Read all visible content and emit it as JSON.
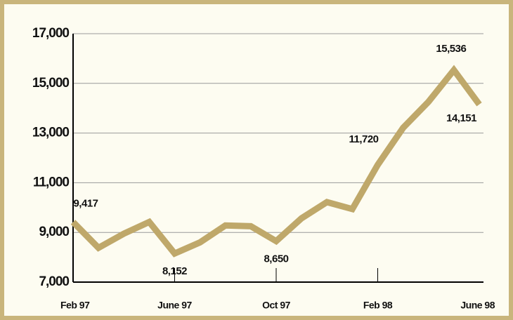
{
  "chart_data": {
    "type": "line",
    "categories": [
      "Feb 97",
      null,
      null,
      null,
      "June 97",
      null,
      null,
      null,
      "Oct 97",
      null,
      null,
      null,
      "Feb 98",
      null,
      null,
      null,
      "June 98"
    ],
    "series": [
      {
        "color": "#bfa86a",
        "values": [
          9417,
          8380,
          8950,
          9420,
          8152,
          8600,
          9280,
          9250,
          8650,
          9570,
          10220,
          9940,
          11720,
          13210,
          14260,
          15536,
          14151
        ],
        "value_labels": [
          "9,417",
          null,
          null,
          null,
          "8,152",
          null,
          null,
          null,
          "8,650",
          null,
          null,
          null,
          "11,720",
          null,
          null,
          "15,536",
          "14,151"
        ]
      }
    ],
    "ylim": [
      7000,
      17000
    ],
    "yticks": [
      {
        "value": 7000,
        "label": "7,000"
      },
      {
        "value": 9000,
        "label": "9,000"
      },
      {
        "value": 11000,
        "label": "11,000"
      },
      {
        "value": 13000,
        "label": "13,000"
      },
      {
        "value": 15000,
        "label": "15,000"
      },
      {
        "value": 17000,
        "label": "17,000"
      }
    ],
    "grid": true
  }
}
